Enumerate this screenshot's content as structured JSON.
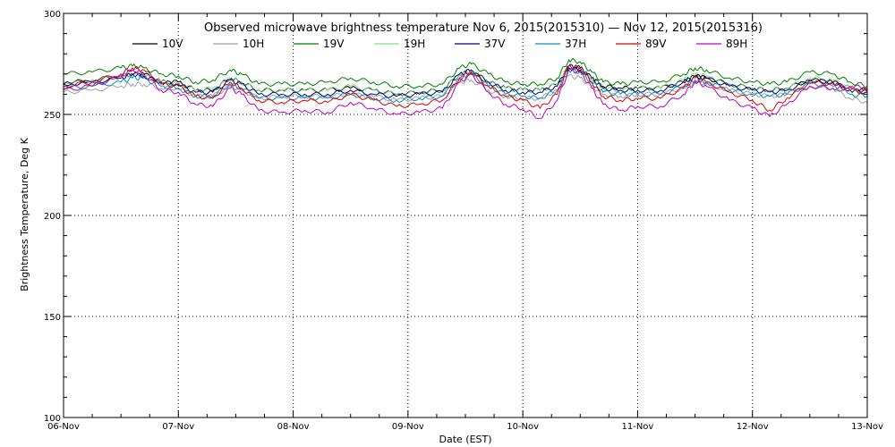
{
  "chart_data": {
    "type": "line",
    "title": "Observed microwave brightness temperature Nov  6, 2015(2015310) — Nov 12, 2015(2015316)",
    "xlabel": "Date (EST)",
    "ylabel": "Brightness Temperature, Deg K",
    "xlim": [
      0,
      7
    ],
    "ylim": [
      100,
      300
    ],
    "yticks": [
      100,
      150,
      200,
      250,
      300
    ],
    "xtick_labels": [
      "06-Nov",
      "07-Nov",
      "08-Nov",
      "09-Nov",
      "10-Nov",
      "11-Nov",
      "12-Nov",
      "13-Nov"
    ],
    "grid": true,
    "legend_position": "top",
    "x": [
      0,
      0.25,
      0.5,
      0.6,
      0.7,
      0.85,
      1.0,
      1.15,
      1.3,
      1.45,
      1.55,
      1.7,
      1.9,
      2.1,
      2.3,
      2.5,
      2.7,
      2.9,
      3.1,
      3.3,
      3.45,
      3.55,
      3.7,
      3.85,
      4.0,
      4.15,
      4.3,
      4.4,
      4.5,
      4.6,
      4.7,
      4.85,
      5.0,
      5.2,
      5.4,
      5.5,
      5.6,
      5.8,
      6.0,
      6.15,
      6.3,
      6.5,
      6.7,
      6.85,
      7.0
    ],
    "series": [
      {
        "name": "10V",
        "color": "#000000",
        "values": [
          265,
          267,
          269,
          270,
          270,
          266,
          266,
          262,
          262,
          268,
          266,
          262,
          262,
          262,
          262,
          263,
          262,
          260,
          261,
          262,
          270,
          271,
          266,
          263,
          262,
          262,
          265,
          273,
          272,
          268,
          264,
          263,
          263,
          263,
          266,
          269,
          268,
          265,
          263,
          262,
          263,
          267,
          266,
          263,
          262
        ]
      },
      {
        "name": "10H",
        "color": "#a0a0a0",
        "values": [
          261,
          262,
          264,
          265,
          265,
          263,
          263,
          259,
          259,
          264,
          262,
          258,
          259,
          259,
          259,
          260,
          259,
          257,
          258,
          259,
          266,
          267,
          262,
          259,
          258,
          258,
          262,
          269,
          268,
          264,
          260,
          259,
          260,
          260,
          263,
          266,
          265,
          262,
          260,
          259,
          260,
          264,
          263,
          258,
          256
        ]
      },
      {
        "name": "19V",
        "color": "#008000",
        "values": [
          270,
          271,
          273,
          274,
          273,
          270,
          269,
          266,
          267,
          272,
          270,
          265,
          265,
          265,
          266,
          268,
          266,
          264,
          264,
          265,
          273,
          275,
          270,
          266,
          265,
          265,
          268,
          277,
          276,
          271,
          266,
          265,
          266,
          266,
          270,
          273,
          272,
          268,
          266,
          265,
          266,
          271,
          270,
          266,
          264
        ]
      },
      {
        "name": "19H",
        "color": "#7fe07f",
        "values": [
          266,
          267,
          269,
          270,
          269,
          266,
          265,
          262,
          263,
          268,
          266,
          262,
          262,
          262,
          262,
          264,
          262,
          260,
          261,
          262,
          270,
          272,
          266,
          263,
          262,
          262,
          265,
          274,
          273,
          268,
          263,
          262,
          263,
          263,
          267,
          270,
          269,
          265,
          263,
          262,
          263,
          268,
          267,
          263,
          261
        ]
      },
      {
        "name": "37V",
        "color": "#000080",
        "values": [
          265,
          266,
          268,
          270,
          269,
          266,
          265,
          261,
          261,
          267,
          265,
          260,
          260,
          260,
          260,
          262,
          260,
          259,
          260,
          261,
          270,
          272,
          266,
          262,
          261,
          261,
          264,
          274,
          273,
          268,
          263,
          262,
          262,
          262,
          266,
          269,
          268,
          264,
          262,
          261,
          262,
          267,
          266,
          262,
          261
        ]
      },
      {
        "name": "37H",
        "color": "#0090c8",
        "values": [
          263,
          264,
          266,
          268,
          268,
          264,
          263,
          259,
          259,
          265,
          263,
          258,
          258,
          258,
          258,
          260,
          258,
          257,
          258,
          259,
          268,
          270,
          264,
          260,
          259,
          258,
          262,
          272,
          271,
          266,
          261,
          260,
          260,
          260,
          264,
          267,
          266,
          262,
          260,
          259,
          260,
          265,
          264,
          260,
          259
        ]
      },
      {
        "name": "89V",
        "color": "#e00000",
        "values": [
          264,
          266,
          270,
          273,
          272,
          265,
          264,
          259,
          258,
          266,
          263,
          257,
          256,
          257,
          256,
          260,
          257,
          254,
          255,
          257,
          268,
          271,
          264,
          259,
          257,
          253,
          260,
          274,
          273,
          266,
          259,
          257,
          258,
          258,
          263,
          268,
          266,
          261,
          257,
          252,
          258,
          266,
          265,
          262,
          261
        ]
      },
      {
        "name": "89H",
        "color": "#c000c0",
        "values": [
          262,
          264,
          269,
          272,
          270,
          262,
          261,
          255,
          254,
          263,
          260,
          252,
          251,
          252,
          251,
          256,
          253,
          250,
          251,
          253,
          266,
          270,
          261,
          255,
          253,
          248,
          257,
          272,
          271,
          263,
          255,
          252,
          254,
          254,
          260,
          266,
          264,
          257,
          253,
          249,
          255,
          264,
          263,
          264,
          263
        ]
      }
    ]
  }
}
